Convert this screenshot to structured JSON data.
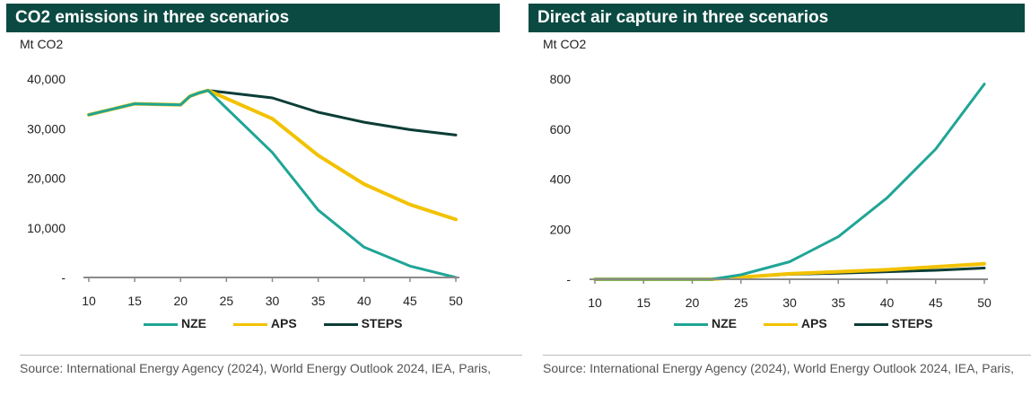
{
  "chart_data": [
    {
      "type": "line",
      "title": "CO2 emissions in three scenarios",
      "ylabel": "Mt CO2",
      "xlabel": "",
      "xlim": [
        10,
        50
      ],
      "ylim": [
        0,
        40000
      ],
      "xticks": [
        "10",
        "15",
        "20",
        "25",
        "30",
        "35",
        "40",
        "45",
        "50"
      ],
      "yticks": [
        {
          "value": 0,
          "label": "-"
        },
        {
          "value": 10000,
          "label": "10,000"
        },
        {
          "value": 20000,
          "label": "20,000"
        },
        {
          "value": 30000,
          "label": "30,000"
        },
        {
          "value": 40000,
          "label": "40,000"
        }
      ],
      "series": [
        {
          "name": "STEPS",
          "color": "#0b3d36",
          "x": [
            10,
            15,
            20,
            21,
            22,
            23,
            30,
            35,
            40,
            45,
            50
          ],
          "y": [
            32800,
            35000,
            34800,
            36500,
            37200,
            37700,
            36200,
            33300,
            31300,
            29800,
            28700
          ]
        },
        {
          "name": "APS",
          "color": "#f2c200",
          "x": [
            10,
            15,
            20,
            21,
            22,
            23,
            30,
            35,
            40,
            45,
            50
          ],
          "y": [
            32800,
            35000,
            34800,
            36500,
            37200,
            37700,
            32000,
            24600,
            18800,
            14700,
            11700
          ]
        },
        {
          "name": "NZE",
          "color": "#1fa596",
          "x": [
            10,
            15,
            20,
            21,
            22,
            23,
            30,
            35,
            40,
            45,
            50
          ],
          "y": [
            32800,
            35000,
            34800,
            36500,
            37200,
            37700,
            25200,
            13600,
            6100,
            2300,
            0
          ]
        }
      ],
      "legend": [
        "NZE",
        "APS",
        "STEPS"
      ],
      "legend_position": "bottom-center",
      "source": "Source:  International Energy Agency (2024), World Energy Outlook 2024, IEA, Paris,"
    },
    {
      "type": "line",
      "title": "Direct air capture in three scenarios",
      "ylabel": "Mt CO2",
      "xlabel": "",
      "xlim": [
        10,
        50
      ],
      "ylim": [
        0,
        800
      ],
      "xticks": [
        "10",
        "15",
        "20",
        "25",
        "30",
        "35",
        "40",
        "45",
        "50"
      ],
      "yticks": [
        {
          "value": 0,
          "label": "-"
        },
        {
          "value": 200,
          "label": "200"
        },
        {
          "value": 400,
          "label": "400"
        },
        {
          "value": 600,
          "label": "600"
        },
        {
          "value": 800,
          "label": "800"
        }
      ],
      "series": [
        {
          "name": "STEPS",
          "color": "#0b3d36",
          "x": [
            10,
            15,
            20,
            22,
            25,
            30,
            35,
            40,
            45,
            50
          ],
          "y": [
            0,
            0,
            0,
            0,
            8,
            20,
            24,
            30,
            36,
            45
          ]
        },
        {
          "name": "APS",
          "color": "#f2c200",
          "x": [
            10,
            15,
            20,
            22,
            25,
            30,
            35,
            40,
            45,
            50
          ],
          "y": [
            0,
            0,
            0,
            0,
            8,
            22,
            30,
            38,
            50,
            62
          ]
        },
        {
          "name": "NZE",
          "color": "#1fa596",
          "x": [
            10,
            15,
            20,
            22,
            25,
            30,
            35,
            40,
            45,
            50
          ],
          "y": [
            0,
            0,
            0,
            0,
            18,
            70,
            170,
            325,
            520,
            780
          ]
        }
      ],
      "legend": [
        "NZE",
        "APS",
        "STEPS"
      ],
      "legend_position": "bottom-center",
      "source": "Source:  International Energy Agency (2024), World Energy Outlook 2024, IEA, Paris,"
    }
  ]
}
